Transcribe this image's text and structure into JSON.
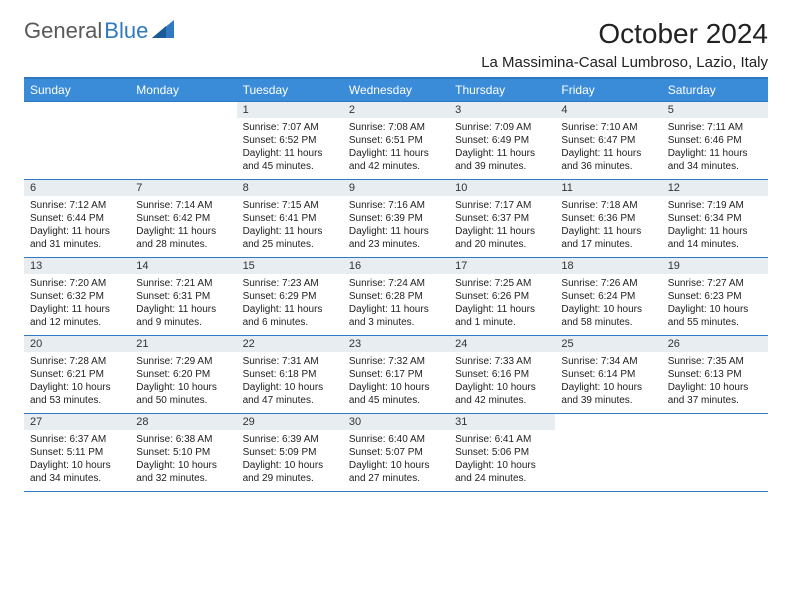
{
  "logo": {
    "word1": "General",
    "word2": "Blue"
  },
  "title": "October 2024",
  "location": "La Massimina-Casal Lumbroso, Lazio, Italy",
  "colors": {
    "header_bg": "#3a8bd8",
    "header_text": "#ffffff",
    "border": "#2f79c2",
    "daynum_bg": "#e8edf1",
    "body_text": "#222222",
    "logo_gray": "#58595b",
    "logo_blue": "#2f79c2",
    "page_bg": "#ffffff"
  },
  "typography": {
    "title_fontsize": 28,
    "location_fontsize": 15,
    "header_fontsize": 12,
    "daynum_fontsize": 11,
    "body_fontsize": 10,
    "logo_fontsize": 22
  },
  "weekdays": [
    "Sunday",
    "Monday",
    "Tuesday",
    "Wednesday",
    "Thursday",
    "Friday",
    "Saturday"
  ],
  "weeks": [
    [
      {
        "empty": true
      },
      {
        "empty": true
      },
      {
        "n": "1",
        "sunrise": "Sunrise: 7:07 AM",
        "sunset": "Sunset: 6:52 PM",
        "daylight": "Daylight: 11 hours and 45 minutes."
      },
      {
        "n": "2",
        "sunrise": "Sunrise: 7:08 AM",
        "sunset": "Sunset: 6:51 PM",
        "daylight": "Daylight: 11 hours and 42 minutes."
      },
      {
        "n": "3",
        "sunrise": "Sunrise: 7:09 AM",
        "sunset": "Sunset: 6:49 PM",
        "daylight": "Daylight: 11 hours and 39 minutes."
      },
      {
        "n": "4",
        "sunrise": "Sunrise: 7:10 AM",
        "sunset": "Sunset: 6:47 PM",
        "daylight": "Daylight: 11 hours and 36 minutes."
      },
      {
        "n": "5",
        "sunrise": "Sunrise: 7:11 AM",
        "sunset": "Sunset: 6:46 PM",
        "daylight": "Daylight: 11 hours and 34 minutes."
      }
    ],
    [
      {
        "n": "6",
        "sunrise": "Sunrise: 7:12 AM",
        "sunset": "Sunset: 6:44 PM",
        "daylight": "Daylight: 11 hours and 31 minutes."
      },
      {
        "n": "7",
        "sunrise": "Sunrise: 7:14 AM",
        "sunset": "Sunset: 6:42 PM",
        "daylight": "Daylight: 11 hours and 28 minutes."
      },
      {
        "n": "8",
        "sunrise": "Sunrise: 7:15 AM",
        "sunset": "Sunset: 6:41 PM",
        "daylight": "Daylight: 11 hours and 25 minutes."
      },
      {
        "n": "9",
        "sunrise": "Sunrise: 7:16 AM",
        "sunset": "Sunset: 6:39 PM",
        "daylight": "Daylight: 11 hours and 23 minutes."
      },
      {
        "n": "10",
        "sunrise": "Sunrise: 7:17 AM",
        "sunset": "Sunset: 6:37 PM",
        "daylight": "Daylight: 11 hours and 20 minutes."
      },
      {
        "n": "11",
        "sunrise": "Sunrise: 7:18 AM",
        "sunset": "Sunset: 6:36 PM",
        "daylight": "Daylight: 11 hours and 17 minutes."
      },
      {
        "n": "12",
        "sunrise": "Sunrise: 7:19 AM",
        "sunset": "Sunset: 6:34 PM",
        "daylight": "Daylight: 11 hours and 14 minutes."
      }
    ],
    [
      {
        "n": "13",
        "sunrise": "Sunrise: 7:20 AM",
        "sunset": "Sunset: 6:32 PM",
        "daylight": "Daylight: 11 hours and 12 minutes."
      },
      {
        "n": "14",
        "sunrise": "Sunrise: 7:21 AM",
        "sunset": "Sunset: 6:31 PM",
        "daylight": "Daylight: 11 hours and 9 minutes."
      },
      {
        "n": "15",
        "sunrise": "Sunrise: 7:23 AM",
        "sunset": "Sunset: 6:29 PM",
        "daylight": "Daylight: 11 hours and 6 minutes."
      },
      {
        "n": "16",
        "sunrise": "Sunrise: 7:24 AM",
        "sunset": "Sunset: 6:28 PM",
        "daylight": "Daylight: 11 hours and 3 minutes."
      },
      {
        "n": "17",
        "sunrise": "Sunrise: 7:25 AM",
        "sunset": "Sunset: 6:26 PM",
        "daylight": "Daylight: 11 hours and 1 minute."
      },
      {
        "n": "18",
        "sunrise": "Sunrise: 7:26 AM",
        "sunset": "Sunset: 6:24 PM",
        "daylight": "Daylight: 10 hours and 58 minutes."
      },
      {
        "n": "19",
        "sunrise": "Sunrise: 7:27 AM",
        "sunset": "Sunset: 6:23 PM",
        "daylight": "Daylight: 10 hours and 55 minutes."
      }
    ],
    [
      {
        "n": "20",
        "sunrise": "Sunrise: 7:28 AM",
        "sunset": "Sunset: 6:21 PM",
        "daylight": "Daylight: 10 hours and 53 minutes."
      },
      {
        "n": "21",
        "sunrise": "Sunrise: 7:29 AM",
        "sunset": "Sunset: 6:20 PM",
        "daylight": "Daylight: 10 hours and 50 minutes."
      },
      {
        "n": "22",
        "sunrise": "Sunrise: 7:31 AM",
        "sunset": "Sunset: 6:18 PM",
        "daylight": "Daylight: 10 hours and 47 minutes."
      },
      {
        "n": "23",
        "sunrise": "Sunrise: 7:32 AM",
        "sunset": "Sunset: 6:17 PM",
        "daylight": "Daylight: 10 hours and 45 minutes."
      },
      {
        "n": "24",
        "sunrise": "Sunrise: 7:33 AM",
        "sunset": "Sunset: 6:16 PM",
        "daylight": "Daylight: 10 hours and 42 minutes."
      },
      {
        "n": "25",
        "sunrise": "Sunrise: 7:34 AM",
        "sunset": "Sunset: 6:14 PM",
        "daylight": "Daylight: 10 hours and 39 minutes."
      },
      {
        "n": "26",
        "sunrise": "Sunrise: 7:35 AM",
        "sunset": "Sunset: 6:13 PM",
        "daylight": "Daylight: 10 hours and 37 minutes."
      }
    ],
    [
      {
        "n": "27",
        "sunrise": "Sunrise: 6:37 AM",
        "sunset": "Sunset: 5:11 PM",
        "daylight": "Daylight: 10 hours and 34 minutes."
      },
      {
        "n": "28",
        "sunrise": "Sunrise: 6:38 AM",
        "sunset": "Sunset: 5:10 PM",
        "daylight": "Daylight: 10 hours and 32 minutes."
      },
      {
        "n": "29",
        "sunrise": "Sunrise: 6:39 AM",
        "sunset": "Sunset: 5:09 PM",
        "daylight": "Daylight: 10 hours and 29 minutes."
      },
      {
        "n": "30",
        "sunrise": "Sunrise: 6:40 AM",
        "sunset": "Sunset: 5:07 PM",
        "daylight": "Daylight: 10 hours and 27 minutes."
      },
      {
        "n": "31",
        "sunrise": "Sunrise: 6:41 AM",
        "sunset": "Sunset: 5:06 PM",
        "daylight": "Daylight: 10 hours and 24 minutes."
      },
      {
        "empty": true
      },
      {
        "empty": true
      }
    ]
  ]
}
